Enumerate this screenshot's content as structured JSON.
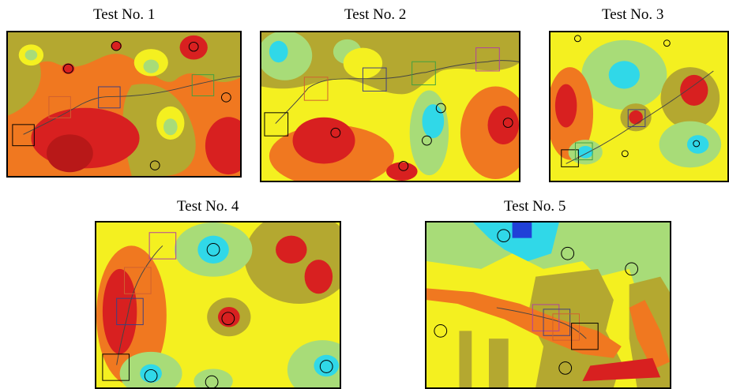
{
  "colors": {
    "red": "#d82020",
    "orange": "#f07820",
    "yellow": "#f4f020",
    "olive": "#b4a830",
    "green": "#a8dc78",
    "cyan": "#30d8e8",
    "blue": "#2040d8"
  },
  "tests": [
    {
      "title": "Test No. 1",
      "markers": [
        "1",
        "3",
        "4",
        "5"
      ]
    },
    {
      "title": "Test No. 2",
      "markers": [
        "1",
        "2",
        "3",
        "4",
        "5"
      ]
    },
    {
      "title": "Test No. 3",
      "markers": [
        "1",
        "2",
        "3",
        "4",
        "5"
      ]
    },
    {
      "title": "Test No. 4",
      "markers": [
        "1",
        "2",
        "3",
        "4",
        "5"
      ]
    },
    {
      "title": "Test No. 5",
      "markers": [
        "1",
        "2",
        "3",
        "4",
        "5"
      ]
    }
  ]
}
